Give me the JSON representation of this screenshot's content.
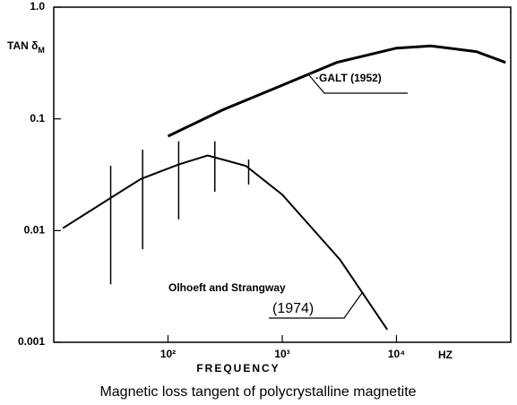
{
  "chart_data": {
    "type": "line",
    "ylabel": "TAN δ",
    "ylabel_sub": "M",
    "xlabel": "FREQUENCY",
    "xunit": "HZ",
    "caption": "Magnetic loss tangent of polycrystalline magnetite",
    "log_x": true,
    "log_y": true,
    "xlim": [
      10,
      100000
    ],
    "ylim": [
      0.001,
      1
    ],
    "xticks": [
      {
        "value": 100,
        "label": "10²"
      },
      {
        "value": 1000,
        "label": "10³"
      },
      {
        "value": 10000,
        "label": "10⁴"
      }
    ],
    "yticks": [
      0.001,
      0.01,
      0.1,
      {
        "value": 1,
        "label": "1.0"
      }
    ],
    "color": "#000000",
    "series": [
      {
        "name": "·GALT (1952)",
        "x": [
          100,
          300,
          1000,
          3000,
          10000,
          20000,
          50000,
          90000
        ],
        "values": [
          0.07,
          0.12,
          0.2,
          0.32,
          0.43,
          0.45,
          0.4,
          0.32
        ]
      },
      {
        "name": "Olhoeft and Strangway",
        "note": "(1974)",
        "x": [
          12,
          30,
          58,
          124,
          222,
          480,
          1000,
          3200,
          8300
        ],
        "values": [
          0.0105,
          0.019,
          0.029,
          0.039,
          0.047,
          0.038,
          0.021,
          0.0055,
          0.0013
        ],
        "error_bars": [
          {
            "x": 31.5,
            "low": 0.0033,
            "high": 0.038
          },
          {
            "x": 60,
            "low": 0.0068,
            "high": 0.053
          },
          {
            "x": 124,
            "low": 0.0126,
            "high": 0.063
          },
          {
            "x": 257,
            "low": 0.0223,
            "high": 0.063
          },
          {
            "x": 508,
            "low": 0.0258,
            "high": 0.0433
          }
        ]
      }
    ]
  }
}
